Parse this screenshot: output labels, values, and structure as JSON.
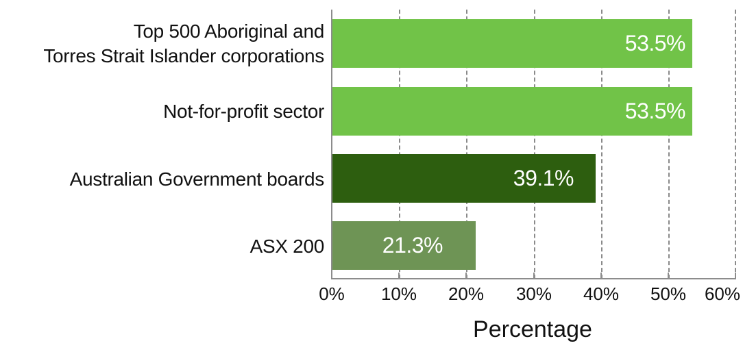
{
  "chart_data": {
    "type": "bar",
    "orientation": "horizontal",
    "title": "",
    "xlabel": "Percentage",
    "ylabel": "",
    "xlim": [
      0,
      60
    ],
    "x_ticks": [
      "0%",
      "10%",
      "20%",
      "30%",
      "40%",
      "50%",
      "60%"
    ],
    "grid": "vertical dashed",
    "legend": "none",
    "categories": [
      "Top 500 Aboriginal and Torres Strait Islander corporations",
      "Not-for-profit sector",
      "Australian Government boards",
      "ASX 200"
    ],
    "values": [
      53.5,
      53.5,
      39.1,
      21.3
    ],
    "data_labels": [
      "53.5%",
      "53.5%",
      "39.1%",
      "21.3%"
    ],
    "colors": [
      "#71c348",
      "#71c348",
      "#2d5e0f",
      "#6e9455"
    ]
  },
  "labels": {
    "cat0_line1": "Top 500 Aboriginal and",
    "cat0_line2": "Torres Strait Islander corporations",
    "cat1": "Not-for-profit sector",
    "cat2": "Australian Government boards",
    "cat3": "ASX 200"
  }
}
